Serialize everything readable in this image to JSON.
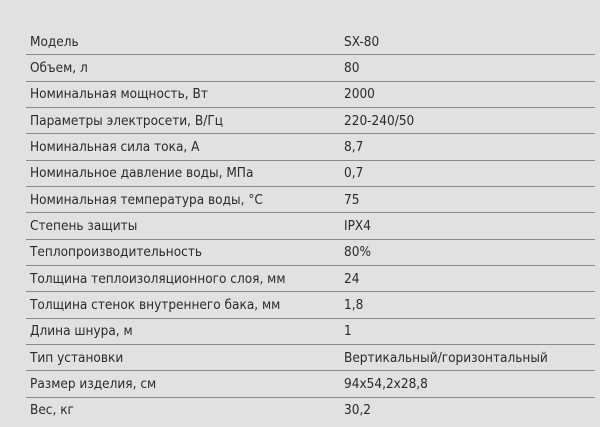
{
  "specs": [
    {
      "label": "Модель",
      "value": "SX-80"
    },
    {
      "label": "Объем, л",
      "value": "80"
    },
    {
      "label": "Номинальная мощность, Вт",
      "value": "2000"
    },
    {
      "label": "Параметры электросети, В/Гц",
      "value": "220-240/50"
    },
    {
      "label": "Номинальная сила тока, А",
      "value": "8,7"
    },
    {
      "label": "Номинальное давление воды, МПа",
      "value": "0,7"
    },
    {
      "label": "Номинальная температура воды, °С",
      "value": "75"
    },
    {
      "label": "Степень защиты",
      "value": "IPX4"
    },
    {
      "label": "Теплопроизводительность",
      "value": "80%"
    },
    {
      "label": "Толщина теплоизоляционного слоя, мм",
      "value": "24"
    },
    {
      "label": "Толщина стенок внутреннего бака, мм",
      "value": "1,8"
    },
    {
      "label": "Длина шнура, м",
      "value": "1"
    },
    {
      "label": "Тип установки",
      "value": "Вертикальный/горизонтальный"
    },
    {
      "label": "Размер изделия, см",
      "value": "94x54,2x28,8"
    },
    {
      "label": "Вес, кг",
      "value": "30,2"
    }
  ]
}
